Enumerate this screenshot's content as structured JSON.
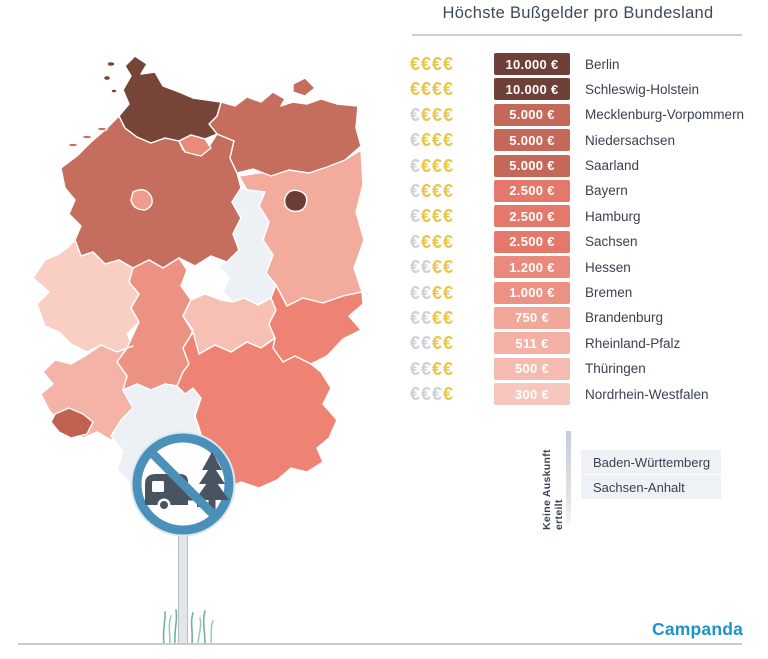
{
  "title": "Höchste Bußgelder pro Bundesland",
  "brand": "Campanda",
  "symbols": {
    "euro": "€"
  },
  "colors": {
    "gold_euro": "#e7c64a",
    "gray_euro": "#ccd1d9",
    "title_text": "#3e4a5a",
    "label_text": "#3a4150",
    "divider": "#c9cfd6",
    "sign_blue": "#4a90b8",
    "sign_halo": "#d9e8f1",
    "sign_icon": "#4a5461",
    "brand_blue": "#1d93c9",
    "no_info_bg": "#eef1f5",
    "ground": "#c8cbce",
    "pole": "#e2e5e9",
    "pole_edge": "#b7bdc5",
    "pole_cap": "#5b6571",
    "grass": "#74b295",
    "grass_light": "#9ccbb4"
  },
  "rows": [
    {
      "state": "Berlin",
      "amount": "10.000 €",
      "gold": 4,
      "badge_color": "#6e4038"
    },
    {
      "state": "Schleswig-Holstein",
      "amount": "10.000 €",
      "gold": 4,
      "badge_color": "#6e4038"
    },
    {
      "state": "Mecklenburg-Vorpommern",
      "amount": "5.000 €",
      "gold": 3,
      "badge_color": "#c4695a"
    },
    {
      "state": "Niedersachsen",
      "amount": "5.000 €",
      "gold": 3,
      "badge_color": "#c4695a"
    },
    {
      "state": "Saarland",
      "amount": "5.000 €",
      "gold": 3,
      "badge_color": "#c4695a"
    },
    {
      "state": "Bayern",
      "amount": "2.500 €",
      "gold": 3,
      "badge_color": "#e4796b"
    },
    {
      "state": "Hamburg",
      "amount": "2.500 €",
      "gold": 3,
      "badge_color": "#e4796b"
    },
    {
      "state": "Sachsen",
      "amount": "2.500 €",
      "gold": 3,
      "badge_color": "#e4796b"
    },
    {
      "state": "Hessen",
      "amount": "1.200 €",
      "gold": 2,
      "badge_color": "#e98a7c"
    },
    {
      "state": "Bremen",
      "amount": "1.000 €",
      "gold": 2,
      "badge_color": "#eb9285"
    },
    {
      "state": "Brandenburg",
      "amount": "750 €",
      "gold": 2,
      "badge_color": "#f1a89b"
    },
    {
      "state": "Rheinland-Pfalz",
      "amount": "511 €",
      "gold": 2,
      "badge_color": "#f3b0a4"
    },
    {
      "state": "Thüringen",
      "amount": "500 €",
      "gold": 2,
      "badge_color": "#f5bbb0"
    },
    {
      "state": "Nordrhein-Westfalen",
      "amount": "300 €",
      "gold": 1,
      "badge_color": "#f7c7bd"
    }
  ],
  "no_info": {
    "label": "Keine Auskunft erteilt",
    "states": [
      "Baden-Württemberg",
      "Sachsen-Anhalt"
    ]
  },
  "map": {
    "state_colors": {
      "schleswig-holstein": "#774538",
      "hamburg": "#e98a7b",
      "mecklenburg-vorpommern": "#c56e5e",
      "niedersachsen": "#c56e5e",
      "bremen": "#f09c8d",
      "brandenburg": "#f2ab9d",
      "berlin": "#6b3d34",
      "sachsen-anhalt": "#edf1f6",
      "nordrhein-westfalen": "#f9cec3",
      "hessen": "#ec9283",
      "thueringen": "#f6c0b4",
      "sachsen": "#ee8374",
      "rheinland-pfalz": "#f4b3a6",
      "saarland": "#c06250",
      "baden-wuerttemberg": "#edf1f6",
      "bayern": "#ee8374"
    }
  },
  "chart_data": {
    "type": "table",
    "title": "Höchste Bußgelder pro Bundesland",
    "categories": [
      "Berlin",
      "Schleswig-Holstein",
      "Mecklenburg-Vorpommern",
      "Niedersachsen",
      "Saarland",
      "Bayern",
      "Hamburg",
      "Sachsen",
      "Hessen",
      "Bremen",
      "Brandenburg",
      "Rheinland-Pfalz",
      "Thüringen",
      "Nordrhein-Westfalen"
    ],
    "values": [
      10000,
      10000,
      5000,
      5000,
      5000,
      2500,
      2500,
      2500,
      1200,
      1000,
      750,
      511,
      500,
      300
    ],
    "unit": "€",
    "rating_max": 4,
    "rating_gold_counts": [
      4,
      4,
      3,
      3,
      3,
      3,
      3,
      3,
      2,
      2,
      2,
      2,
      2,
      1
    ],
    "no_data": [
      "Baden-Württemberg",
      "Sachsen-Anhalt"
    ],
    "legend_position": "right",
    "map_type": "choropleth-germany"
  }
}
